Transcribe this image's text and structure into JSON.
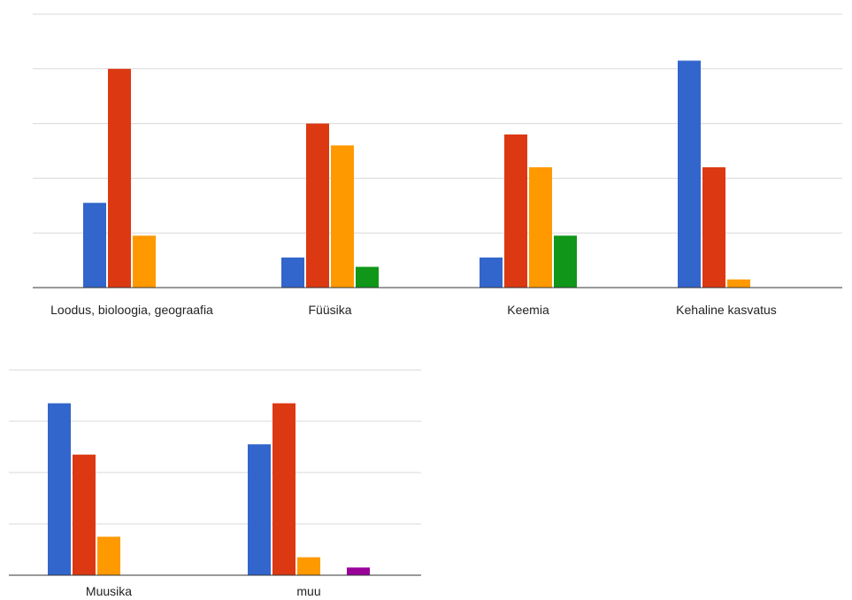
{
  "chart_data": [
    {
      "type": "bar",
      "categories": [
        "Loodus, bioloogia, geograafia",
        "Füüsika",
        "Keemia",
        "Kehaline kasvatus"
      ],
      "ylim": [
        0,
        5
      ],
      "series": [
        {
          "color": "#3366cc",
          "values": [
            1.55,
            0.55,
            0.55,
            4.15
          ]
        },
        {
          "color": "#dc3912",
          "values": [
            4.0,
            3.0,
            2.8,
            2.2
          ]
        },
        {
          "color": "#ff9900",
          "values": [
            0.95,
            2.6,
            2.2,
            0.15
          ]
        },
        {
          "color": "#109618",
          "values": [
            0,
            0.38,
            0.95,
            0
          ]
        }
      ],
      "grid": true,
      "legend": "none"
    },
    {
      "type": "bar",
      "categories": [
        "Muusika",
        "muu"
      ],
      "ylim": [
        0,
        4
      ],
      "series": [
        {
          "color": "#3366cc",
          "values": [
            3.35,
            2.55
          ]
        },
        {
          "color": "#dc3912",
          "values": [
            2.35,
            3.35
          ]
        },
        {
          "color": "#ff9900",
          "values": [
            0.75,
            0.35
          ]
        },
        {
          "color": "#109618",
          "values": [
            0,
            0
          ]
        },
        {
          "color": "#990099",
          "values": [
            0,
            0.15
          ]
        }
      ],
      "grid": true,
      "legend": "none"
    }
  ]
}
